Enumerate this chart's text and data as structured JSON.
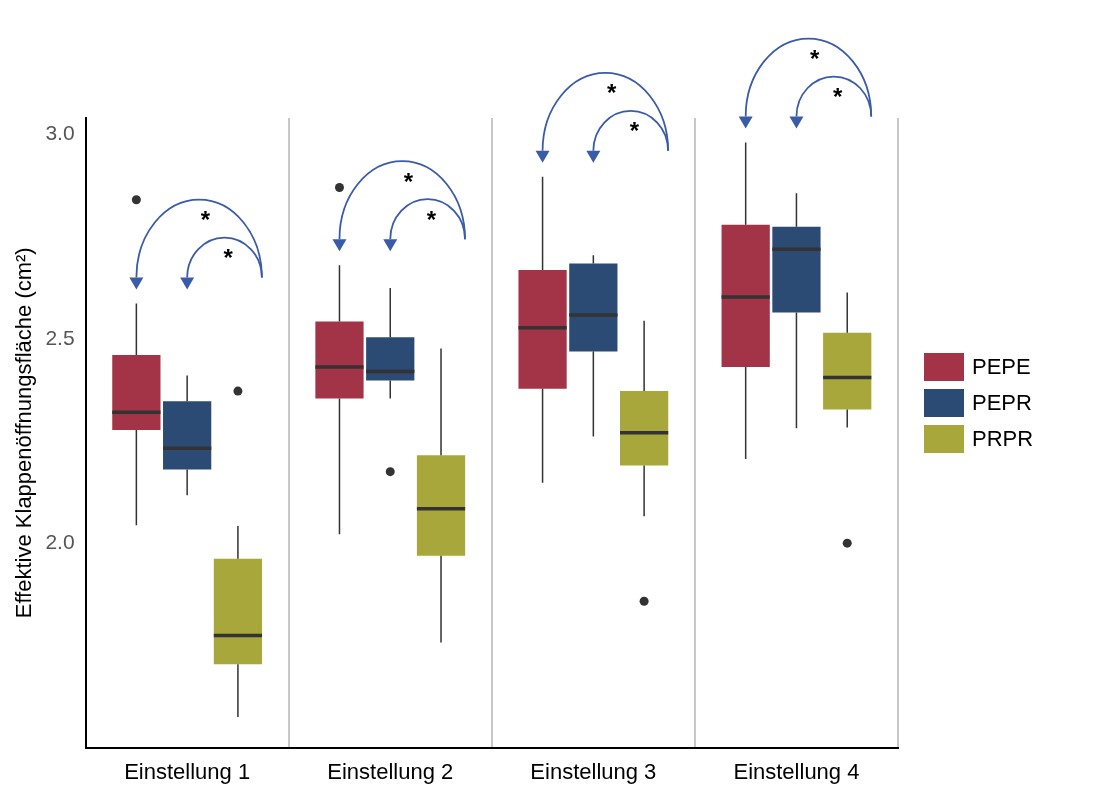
{
  "chart_data": {
    "type": "box",
    "ylabel": "Effektive Klappenöffnungsfläche (cm²)",
    "categories": [
      "Einstellung 1",
      "Einstellung 2",
      "Einstellung 3",
      "Einstellung 4"
    ],
    "series": [
      {
        "name": "PEPE",
        "color": "#a33346",
        "boxes": [
          {
            "low": 2.044,
            "q1": 2.277,
            "median": 2.32,
            "q3": 2.46,
            "high": 2.586,
            "outliers": [
              2.84
            ]
          },
          {
            "low": 2.022,
            "q1": 2.354,
            "median": 2.431,
            "q3": 2.542,
            "high": 2.68,
            "outliers": [
              2.87
            ]
          },
          {
            "low": 2.148,
            "q1": 2.378,
            "median": 2.527,
            "q3": 2.668,
            "high": 2.896
          },
          {
            "low": 2.206,
            "q1": 2.431,
            "median": 2.602,
            "q3": 2.779,
            "high": 2.98
          }
        ]
      },
      {
        "name": "PEPR",
        "color": "#2b4a74",
        "boxes": [
          {
            "low": 2.117,
            "q1": 2.18,
            "median": 2.232,
            "q3": 2.347,
            "high": 2.41
          },
          {
            "low": 2.354,
            "q1": 2.398,
            "median": 2.42,
            "q3": 2.504,
            "high": 2.624,
            "outliers": [
              2.175
            ]
          },
          {
            "low": 2.261,
            "q1": 2.469,
            "median": 2.558,
            "q3": 2.684,
            "high": 2.704
          },
          {
            "low": 2.281,
            "q1": 2.564,
            "median": 2.719,
            "q3": 2.774,
            "high": 2.856
          }
        ]
      },
      {
        "name": "PRPR",
        "color": "#a7a73c",
        "boxes": [
          {
            "low": 1.575,
            "q1": 1.704,
            "median": 1.774,
            "q3": 1.962,
            "high": 2.042,
            "outliers": [
              2.372
            ]
          },
          {
            "low": 1.757,
            "q1": 1.969,
            "median": 2.084,
            "q3": 2.215,
            "high": 2.476
          },
          {
            "low": 2.066,
            "q1": 2.19,
            "median": 2.27,
            "q3": 2.372,
            "high": 2.544,
            "outliers": [
              1.858
            ]
          },
          {
            "low": 2.283,
            "q1": 2.327,
            "median": 2.405,
            "q3": 2.515,
            "high": 2.613,
            "outliers": [
              2.0
            ]
          }
        ]
      }
    ],
    "ylim": [
      1.5,
      3.04
    ],
    "yticks": [
      {
        "value": 2.0,
        "label": "2.0"
      },
      {
        "value": 2.5,
        "label": "2.5"
      },
      {
        "value": 3.0,
        "label": "3.0"
      }
    ],
    "grid": "x",
    "legend": "right",
    "annotations": [
      "*",
      "*",
      "*",
      "*",
      "*",
      "*",
      "*",
      "*"
    ]
  }
}
